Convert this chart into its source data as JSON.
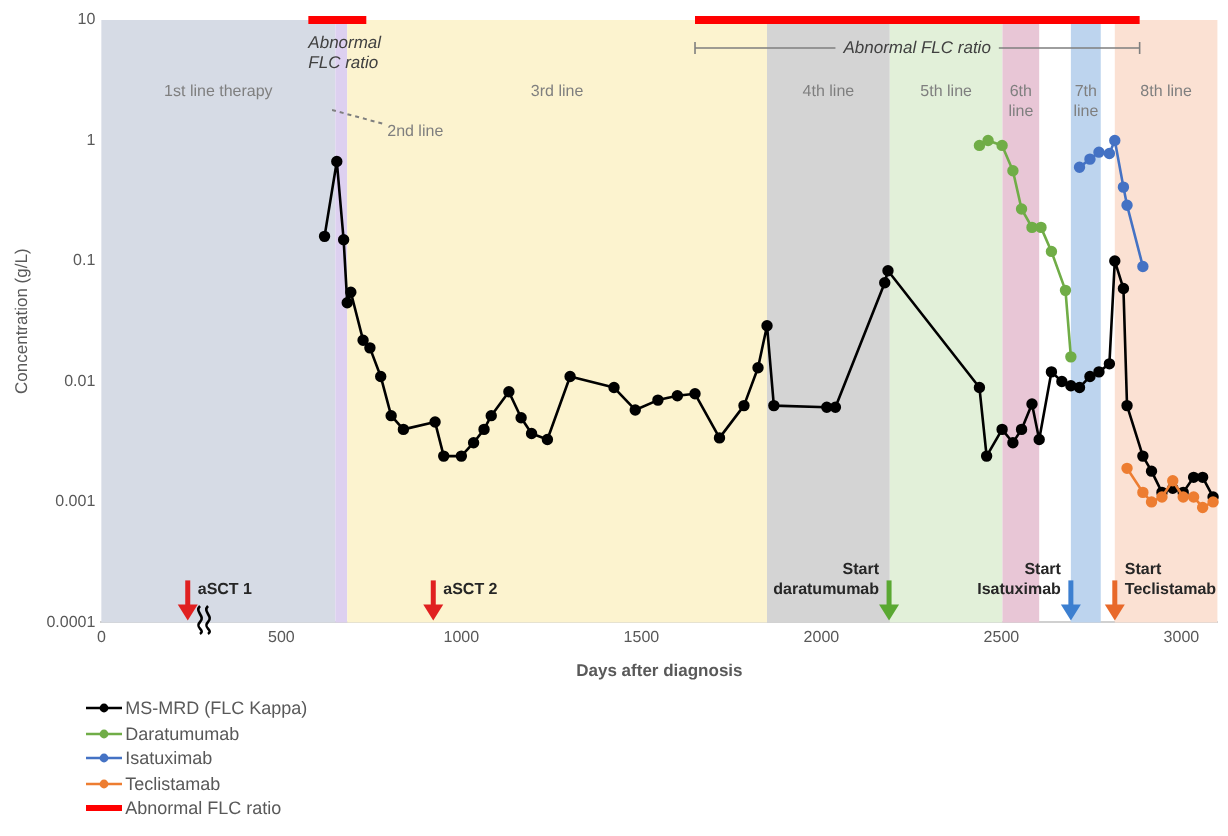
{
  "chart_data": {
    "type": "line",
    "xlabel": "Days after diagnosis",
    "ylabel": "Concentration (g/L)",
    "xlim": [
      0,
      3100
    ],
    "xticks": [
      0,
      500,
      1000,
      1500,
      2000,
      2500,
      3000
    ],
    "ylim": [
      0.0001,
      10
    ],
    "yticks": [
      0.0001,
      0.001,
      0.01,
      0.1,
      1,
      10
    ],
    "log": "y",
    "grid": false,
    "legend": "bottom left",
    "marker": "circle",
    "line_style": "solid",
    "series": [
      {
        "name": "MS-MRD (FLC Kappa)",
        "color": "#000000",
        "x": [
          620,
          654,
          673,
          683,
          693,
          727,
          746,
          776,
          805,
          839,
          927,
          951,
          1000,
          1034,
          1063,
          1083,
          1132,
          1166,
          1195,
          1239,
          1302,
          1424,
          1483,
          1546,
          1600,
          1649,
          1717,
          1785,
          1824,
          1849,
          1868,
          2015,
          2039,
          2176,
          2185,
          2439,
          2459,
          2502,
          2532,
          2556,
          2585,
          2605,
          2639,
          2668,
          2693,
          2717,
          2746,
          2771,
          2800,
          2815,
          2839,
          2849,
          2893,
          2917,
          2946,
          2976,
          3005,
          3034,
          3059,
          3088
        ],
        "values": [
          0.16,
          0.67,
          0.15,
          0.045,
          0.055,
          0.022,
          0.019,
          0.011,
          0.0052,
          0.004,
          0.0046,
          0.0024,
          0.0024,
          0.0031,
          0.004,
          0.0052,
          0.0082,
          0.005,
          0.0037,
          0.0033,
          0.011,
          0.0089,
          0.0058,
          0.007,
          0.0076,
          0.0079,
          0.0034,
          0.0063,
          0.013,
          0.029,
          0.0063,
          0.0061,
          0.0061,
          0.066,
          0.083,
          0.0089,
          0.0024,
          0.004,
          0.0031,
          0.004,
          0.0065,
          0.0033,
          0.012,
          0.01,
          0.0092,
          0.0089,
          0.011,
          0.012,
          0.014,
          0.1,
          0.059,
          0.0063,
          0.0024,
          0.0018,
          0.0012,
          0.0013,
          0.0012,
          0.0016,
          0.0016,
          0.0011
        ]
      },
      {
        "name": "Daratumumab",
        "color": "#70ad47",
        "x": [
          2439,
          2463,
          2502,
          2532,
          2556,
          2585,
          2610,
          2639,
          2678,
          2693
        ],
        "values": [
          0.91,
          1.0,
          0.91,
          0.56,
          0.27,
          0.19,
          0.19,
          0.12,
          0.057,
          0.016
        ]
      },
      {
        "name": "Isatuximab",
        "color": "#4472c4",
        "x": [
          2717,
          2746,
          2771,
          2800,
          2815,
          2839,
          2849,
          2893
        ],
        "values": [
          0.6,
          0.7,
          0.8,
          0.78,
          1.0,
          0.41,
          0.29,
          0.09
        ]
      },
      {
        "name": "Teclistamab",
        "color": "#ed7d31",
        "x": [
          2849,
          2893,
          2917,
          2946,
          2976,
          3005,
          3034,
          3059,
          3088
        ],
        "values": [
          0.0019,
          0.0012,
          0.001,
          0.0011,
          0.0015,
          0.0011,
          0.0011,
          0.0009,
          0.001
        ]
      },
      {
        "name": "Abnormal FLC ratio",
        "color": "#ff0000",
        "marker": "none",
        "x": [
          575,
          736,
          1200,
          1649,
          2884
        ],
        "values": [
          10,
          10,
          null,
          10,
          10
        ]
      }
    ],
    "bands": [
      {
        "axis": "x",
        "from": 0,
        "to": 650,
        "label": "1st line therapy",
        "color": "#d6dbe5"
      },
      {
        "axis": "x",
        "from": 650,
        "to": 683,
        "label": "2nd line",
        "color": "#ddd0f0"
      },
      {
        "axis": "x",
        "from": 683,
        "to": 1849,
        "label": "3rd line",
        "color": "#fcf3cf"
      },
      {
        "axis": "x",
        "from": 1849,
        "to": 2190,
        "label": "4th line",
        "color": "#d4d4d4"
      },
      {
        "axis": "x",
        "from": 2190,
        "to": 2503,
        "label": "5th line",
        "color": "#e2f0d9"
      },
      {
        "axis": "x",
        "from": 2503,
        "to": 2605,
        "label": "6th line",
        "color": "#e8c6d6"
      },
      {
        "axis": "x",
        "from": 2693,
        "to": 2776,
        "label": "7th line",
        "color": "#bdd4ee"
      },
      {
        "axis": "x",
        "from": 2815,
        "to": 3100,
        "label": "8th line",
        "color": "#fbe1d3"
      }
    ],
    "annotations": [
      {
        "text": "Abnormal FLC ratio",
        "x": 655,
        "y": 10
      },
      {
        "text": "Abnormal FLC ratio",
        "x": 2266,
        "y": 10
      },
      {
        "text": "aSCT 1",
        "x": 240,
        "y": 0.0001
      },
      {
        "text": "aSCT 2",
        "x": 922,
        "y": 0.0001
      },
      {
        "text": "Start daratumumab",
        "x": 2188,
        "y": 0.0001
      },
      {
        "text": "Start Isatuximab",
        "x": 2693,
        "y": 0.0001
      },
      {
        "text": "Start Teclistamab",
        "x": 2815,
        "y": 0.0001
      }
    ]
  }
}
